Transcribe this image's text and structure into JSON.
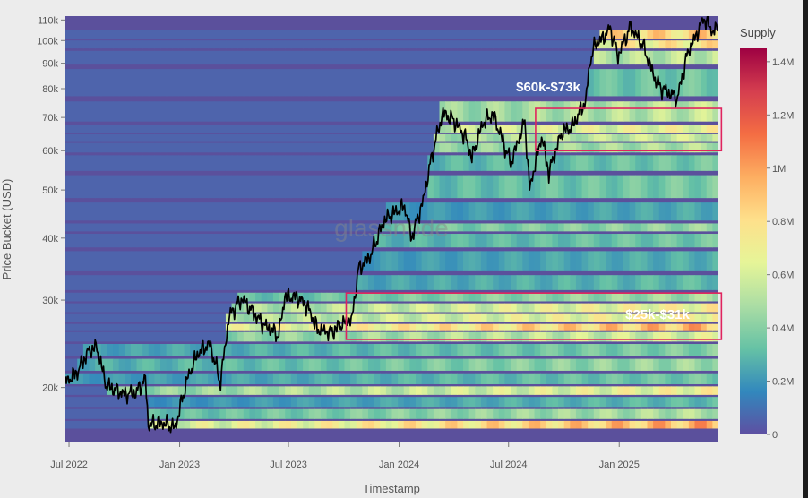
{
  "chart_data": {
    "type": "heatmap",
    "title": "",
    "xlabel": "Timestamp",
    "ylabel": "Price Bucket (USD)",
    "y_scale": "log",
    "ylim": [
      15500,
      112000
    ],
    "xlim": [
      "2022-06-25",
      "2025-06-15"
    ],
    "x_ticks": [
      {
        "date": "2022-07-01",
        "label": "Jul 2022"
      },
      {
        "date": "2023-01-01",
        "label": "Jan 2023"
      },
      {
        "date": "2023-07-01",
        "label": "Jul 2023"
      },
      {
        "date": "2024-01-01",
        "label": "Jan 2024"
      },
      {
        "date": "2024-07-01",
        "label": "Jul 2024"
      },
      {
        "date": "2025-01-01",
        "label": "Jan 2025"
      }
    ],
    "y_ticks": [
      {
        "value": 20000,
        "label": "20k"
      },
      {
        "value": 30000,
        "label": "30k"
      },
      {
        "value": 40000,
        "label": "40k"
      },
      {
        "value": 50000,
        "label": "50k"
      },
      {
        "value": 60000,
        "label": "60k"
      },
      {
        "value": 70000,
        "label": "70k"
      },
      {
        "value": 80000,
        "label": "80k"
      },
      {
        "value": 90000,
        "label": "90k"
      },
      {
        "value": 100000,
        "label": "100k"
      },
      {
        "value": 110000,
        "label": "110k"
      }
    ],
    "colorbar": {
      "title": "Supply",
      "range": [
        0,
        1450000
      ],
      "ticks": [
        {
          "value": 0,
          "label": "0"
        },
        {
          "value": 200000,
          "label": "0.2M"
        },
        {
          "value": 400000,
          "label": "0.4M"
        },
        {
          "value": 600000,
          "label": "0.6M"
        },
        {
          "value": 800000,
          "label": "0.8M"
        },
        {
          "value": 1000000,
          "label": "1M"
        },
        {
          "value": 1200000,
          "label": "1.2M"
        },
        {
          "value": 1400000,
          "label": "1.4M"
        }
      ],
      "colors": [
        "#5e4fa2",
        "#3288bd",
        "#66c2a5",
        "#abdda4",
        "#e6f598",
        "#fee08b",
        "#fdae61",
        "#f46d43",
        "#d53e4f",
        "#9e0142"
      ]
    },
    "price_series": {
      "color": "#000000",
      "points": [
        [
          "2022-06-25",
          20500
        ],
        [
          "2022-07-15",
          21500
        ],
        [
          "2022-08-01",
          23500
        ],
        [
          "2022-08-15",
          24200
        ],
        [
          "2022-09-01",
          20200
        ],
        [
          "2022-09-15",
          19800
        ],
        [
          "2022-10-01",
          19400
        ],
        [
          "2022-10-20",
          19500
        ],
        [
          "2022-11-05",
          20800
        ],
        [
          "2022-11-10",
          16800
        ],
        [
          "2022-12-01",
          17000
        ],
        [
          "2022-12-25",
          16600
        ],
        [
          "2023-01-15",
          21000
        ],
        [
          "2023-02-01",
          23500
        ],
        [
          "2023-02-20",
          24500
        ],
        [
          "2023-03-10",
          20400
        ],
        [
          "2023-03-25",
          28000
        ],
        [
          "2023-04-15",
          30200
        ],
        [
          "2023-05-01",
          28500
        ],
        [
          "2023-05-20",
          26800
        ],
        [
          "2023-06-15",
          25500
        ],
        [
          "2023-06-25",
          30500
        ],
        [
          "2023-07-15",
          30400
        ],
        [
          "2023-08-01",
          29200
        ],
        [
          "2023-08-18",
          26200
        ],
        [
          "2023-09-10",
          25800
        ],
        [
          "2023-09-30",
          27000
        ],
        [
          "2023-10-15",
          27500
        ],
        [
          "2023-10-25",
          34500
        ],
        [
          "2023-11-15",
          37000
        ],
        [
          "2023-12-08",
          43500
        ],
        [
          "2024-01-10",
          46500
        ],
        [
          "2024-01-22",
          40000
        ],
        [
          "2024-02-10",
          47500
        ],
        [
          "2024-02-28",
          61000
        ],
        [
          "2024-03-14",
          71500
        ],
        [
          "2024-04-01",
          69000
        ],
        [
          "2024-04-20",
          64000
        ],
        [
          "2024-05-01",
          58000
        ],
        [
          "2024-05-20",
          68500
        ],
        [
          "2024-06-05",
          71000
        ],
        [
          "2024-06-25",
          61000
        ],
        [
          "2024-07-05",
          56500
        ],
        [
          "2024-07-28",
          68500
        ],
        [
          "2024-08-05",
          50000
        ],
        [
          "2024-08-25",
          64000
        ],
        [
          "2024-09-06",
          54000
        ],
        [
          "2024-09-28",
          65500
        ],
        [
          "2024-10-15",
          67000
        ],
        [
          "2024-10-29",
          72500
        ],
        [
          "2024-11-06",
          75000
        ],
        [
          "2024-11-13",
          90000
        ],
        [
          "2024-11-22",
          98500
        ],
        [
          "2024-12-05",
          101000
        ],
        [
          "2024-12-17",
          106000
        ],
        [
          "2024-12-30",
          93000
        ],
        [
          "2025-01-20",
          106500
        ],
        [
          "2025-02-10",
          97500
        ],
        [
          "2025-02-28",
          84500
        ],
        [
          "2025-03-10",
          80500
        ],
        [
          "2025-04-08",
          76500
        ],
        [
          "2025-04-25",
          94500
        ],
        [
          "2025-05-10",
          103000
        ],
        [
          "2025-05-22",
          111000
        ],
        [
          "2025-06-05",
          104500
        ],
        [
          "2025-06-15",
          106000
        ]
      ]
    },
    "supply_bands": [
      {
        "price": 16800,
        "supply": 1120000
      },
      {
        "price": 17600,
        "supply": 600000
      },
      {
        "price": 18800,
        "supply": 360000
      },
      {
        "price": 19700,
        "supply": 820000
      },
      {
        "price": 20700,
        "supply": 420000
      },
      {
        "price": 22300,
        "supply": 540000
      },
      {
        "price": 23700,
        "supply": 460000
      },
      {
        "price": 25600,
        "supply": 720000
      },
      {
        "price": 26400,
        "supply": 1100000
      },
      {
        "price": 27500,
        "supply": 860000
      },
      {
        "price": 29000,
        "supply": 840000
      },
      {
        "price": 30400,
        "supply": 560000
      },
      {
        "price": 32000,
        "supply": 360000
      },
      {
        "price": 36000,
        "supply": 320000
      },
      {
        "price": 40200,
        "supply": 420000
      },
      {
        "price": 42000,
        "supply": 520000
      },
      {
        "price": 44000,
        "supply": 300000
      },
      {
        "price": 51500,
        "supply": 440000
      },
      {
        "price": 57000,
        "supply": 420000
      },
      {
        "price": 61500,
        "supply": 600000
      },
      {
        "price": 63500,
        "supply": 680000
      },
      {
        "price": 66500,
        "supply": 800000
      },
      {
        "price": 69500,
        "supply": 640000
      },
      {
        "price": 83500,
        "supply": 420000
      },
      {
        "price": 94500,
        "supply": 640000
      },
      {
        "price": 97500,
        "supply": 900000
      },
      {
        "price": 103500,
        "supply": 1000000
      }
    ],
    "annotations": [
      {
        "label": "$60k-$73k",
        "box_price": [
          60000,
          73000
        ],
        "box_dates": [
          "2024-08-15",
          "2025-06-20"
        ]
      },
      {
        "label": "$25k-$31k",
        "box_price": [
          25000,
          31000
        ],
        "box_dates": [
          "2023-10-05",
          "2025-06-20"
        ]
      }
    ],
    "watermark": "glassnode",
    "grid": false,
    "legend": "colorbar-right"
  }
}
